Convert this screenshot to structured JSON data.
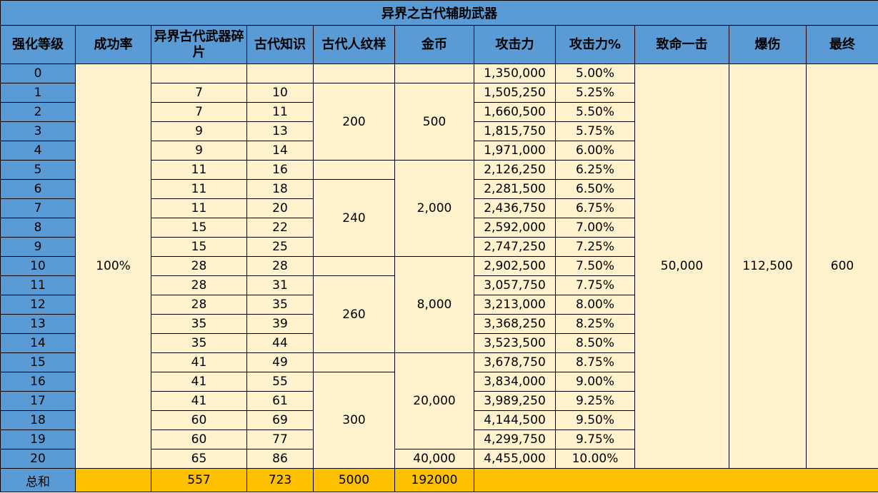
{
  "title": "异界之古代辅助武器",
  "headers": [
    "强化等级",
    "成功率",
    "异界古代武器碎片",
    "古代知识",
    "古代人纹样",
    "金币",
    "攻击力",
    "攻击力%",
    "致命一击",
    "爆伤",
    "最终"
  ],
  "success_rate": "100%",
  "crit": "50,000",
  "crit_dmg": "112,500",
  "final": "600",
  "rows": [
    {
      "level": "0",
      "shards": "",
      "knowledge": "",
      "atk": "1,350,000",
      "atk_pct": "5.00%"
    },
    {
      "level": "1",
      "shards": "7",
      "knowledge": "10",
      "atk": "1,505,250",
      "atk_pct": "5.25%"
    },
    {
      "level": "2",
      "shards": "7",
      "knowledge": "11",
      "atk": "1,660,500",
      "atk_pct": "5.50%"
    },
    {
      "level": "3",
      "shards": "9",
      "knowledge": "13",
      "atk": "1,815,750",
      "atk_pct": "5.75%"
    },
    {
      "level": "4",
      "shards": "9",
      "knowledge": "14",
      "atk": "1,971,000",
      "atk_pct": "6.00%"
    },
    {
      "level": "5",
      "shards": "11",
      "knowledge": "16",
      "atk": "2,126,250",
      "atk_pct": "6.25%"
    },
    {
      "level": "6",
      "shards": "11",
      "knowledge": "18",
      "atk": "2,281,500",
      "atk_pct": "6.50%"
    },
    {
      "level": "7",
      "shards": "11",
      "knowledge": "20",
      "atk": "2,436,750",
      "atk_pct": "6.75%"
    },
    {
      "level": "8",
      "shards": "15",
      "knowledge": "22",
      "atk": "2,592,000",
      "atk_pct": "7.00%"
    },
    {
      "level": "9",
      "shards": "15",
      "knowledge": "25",
      "atk": "2,747,250",
      "atk_pct": "7.25%"
    },
    {
      "level": "10",
      "shards": "28",
      "knowledge": "28",
      "atk": "2,902,500",
      "atk_pct": "7.50%"
    },
    {
      "level": "11",
      "shards": "28",
      "knowledge": "31",
      "atk": "3,057,750",
      "atk_pct": "7.75%"
    },
    {
      "level": "12",
      "shards": "28",
      "knowledge": "35",
      "atk": "3,213,000",
      "atk_pct": "8.00%"
    },
    {
      "level": "13",
      "shards": "35",
      "knowledge": "39",
      "atk": "3,368,250",
      "atk_pct": "8.25%"
    },
    {
      "level": "14",
      "shards": "35",
      "knowledge": "44",
      "atk": "3,523,500",
      "atk_pct": "8.50%"
    },
    {
      "level": "15",
      "shards": "41",
      "knowledge": "49",
      "atk": "3,678,750",
      "atk_pct": "8.75%"
    },
    {
      "level": "16",
      "shards": "41",
      "knowledge": "55",
      "atk": "3,834,000",
      "atk_pct": "9.00%"
    },
    {
      "level": "17",
      "shards": "41",
      "knowledge": "61",
      "atk": "3,989,250",
      "atk_pct": "9.25%"
    },
    {
      "level": "18",
      "shards": "60",
      "knowledge": "69",
      "atk": "4,144,500",
      "atk_pct": "9.50%"
    },
    {
      "level": "19",
      "shards": "60",
      "knowledge": "77",
      "atk": "4,299,750",
      "atk_pct": "9.75%"
    },
    {
      "level": "20",
      "shards": "65",
      "knowledge": "86",
      "atk": "4,455,000",
      "atk_pct": "10.00%"
    }
  ],
  "pattern_groups": [
    "200",
    "240",
    "260",
    "300"
  ],
  "gold_groups": [
    "500",
    "2,000",
    "8,000",
    "20,000",
    "40,000"
  ],
  "totals": {
    "label": "总和",
    "shards": "557",
    "knowledge": "723",
    "pattern": "5000",
    "gold": "192000"
  },
  "colors": {
    "header": "#5b9bd5",
    "cell": "#fff2cc",
    "total": "#ffc000"
  }
}
